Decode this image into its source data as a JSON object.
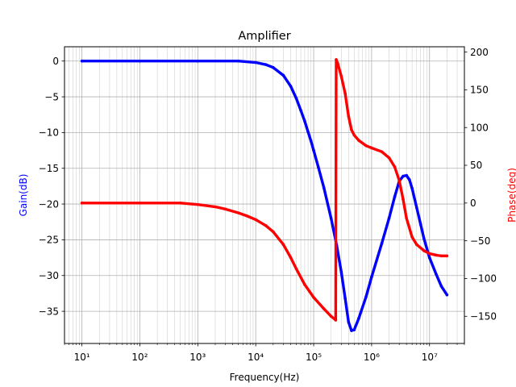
{
  "chart_data": {
    "type": "line",
    "title": "Amplifier",
    "xlabel": "Frequency(Hz)",
    "ylabel_left": "Gain(dB)",
    "ylabel_right": "Phase(deg)",
    "x_scale": "log",
    "xlim": [
      5,
      40000000
    ],
    "ylim_left": [
      -39.5,
      2
    ],
    "ylim_right": [
      -186,
      207
    ],
    "grid": true,
    "x_tick_values": [
      10,
      100,
      1000,
      10000,
      100000,
      1000000,
      10000000
    ],
    "x_tick_labels": [
      "10¹",
      "10²",
      "10³",
      "10⁴",
      "10⁵",
      "10⁶",
      "10⁷"
    ],
    "y_left_ticks": [
      0,
      -5,
      -10,
      -15,
      -20,
      -25,
      -30,
      -35
    ],
    "y_left_tick_labels": [
      "0",
      "−5",
      "−10",
      "−15",
      "−20",
      "−25",
      "−30",
      "−35"
    ],
    "y_right_ticks": [
      200,
      150,
      100,
      50,
      0,
      -50,
      -100,
      -150
    ],
    "y_right_tick_labels": [
      "200",
      "150",
      "100",
      "50",
      "0",
      "−50",
      "−100",
      "−150"
    ],
    "colors": {
      "gain": "#0000ff",
      "phase": "#ff0000",
      "grid": "#b0b0b0",
      "axes": "#000000"
    },
    "series": [
      {
        "axis": "left",
        "color": "#0000ff",
        "x": [
          10,
          100,
          1000,
          5000,
          10000,
          15000,
          20000,
          30000,
          40000,
          50000,
          60000,
          70000,
          80000,
          90000,
          100000,
          120000,
          150000,
          200000,
          250000,
          300000,
          350000,
          400000,
          450000,
          500000,
          600000,
          800000,
          1000000,
          1500000,
          2000000,
          2500000,
          3000000,
          3500000,
          4000000,
          4500000,
          5000000,
          6000000,
          7000000,
          8000000,
          10000000,
          13000000,
          16000000,
          20000000
        ],
        "y": [
          0,
          0,
          0,
          0,
          -0.2,
          -0.5,
          -0.9,
          -2.0,
          -3.5,
          -5.2,
          -6.9,
          -8.4,
          -9.9,
          -11.2,
          -12.5,
          -14.8,
          -17.7,
          -22.0,
          -25.8,
          -29.5,
          -33.2,
          -36.5,
          -37.7,
          -37.6,
          -36.0,
          -33.0,
          -30.2,
          -25.5,
          -22.0,
          -19.0,
          -16.8,
          -16.1,
          -16.0,
          -16.6,
          -17.8,
          -20.5,
          -22.8,
          -24.8,
          -27.5,
          -29.8,
          -31.5,
          -32.7
        ]
      },
      {
        "axis": "right",
        "color": "#ff0000",
        "x": [
          10,
          100,
          500,
          1000,
          2000,
          3000,
          5000,
          7000,
          10000,
          15000,
          20000,
          30000,
          40000,
          50000,
          70000,
          100000,
          150000,
          200000,
          240000,
          245000,
          260000,
          300000,
          350000,
          400000,
          450000,
          500000,
          600000,
          800000,
          1000000,
          1500000,
          2000000,
          2500000,
          3000000,
          3500000,
          4000000,
          5000000,
          6000000,
          8000000,
          10000000,
          13000000,
          16000000,
          20000000
        ],
        "y": [
          0,
          0,
          0,
          -2,
          -5,
          -8,
          -13,
          -17,
          -22,
          -30,
          -38,
          -55,
          -72,
          -87,
          -108,
          -125,
          -140,
          -150,
          -155,
          190,
          185,
          168,
          145,
          115,
          97,
          90,
          83,
          76,
          73,
          68,
          60,
          48,
          30,
          5,
          -20,
          -45,
          -55,
          -63,
          -67,
          -69,
          -70,
          -70
        ]
      }
    ]
  }
}
